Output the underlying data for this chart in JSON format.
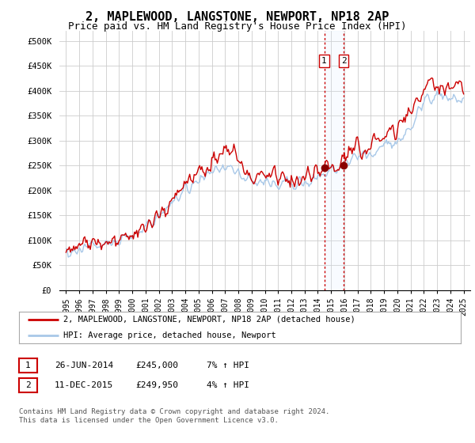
{
  "title": "2, MAPLEWOOD, LANGSTONE, NEWPORT, NP18 2AP",
  "subtitle": "Price paid vs. HM Land Registry's House Price Index (HPI)",
  "title_fontsize": 11,
  "subtitle_fontsize": 9,
  "ylabel_ticks": [
    "£0",
    "£50K",
    "£100K",
    "£150K",
    "£200K",
    "£250K",
    "£300K",
    "£350K",
    "£400K",
    "£450K",
    "£500K"
  ],
  "ytick_values": [
    0,
    50000,
    100000,
    150000,
    200000,
    250000,
    300000,
    350000,
    400000,
    450000,
    500000
  ],
  "ylim": [
    0,
    520000
  ],
  "xlim_start": 1994.5,
  "xlim_end": 2025.5,
  "xtick_years": [
    1995,
    1996,
    1997,
    1998,
    1999,
    2000,
    2001,
    2002,
    2003,
    2004,
    2005,
    2006,
    2007,
    2008,
    2009,
    2010,
    2011,
    2012,
    2013,
    2014,
    2015,
    2016,
    2017,
    2018,
    2019,
    2020,
    2021,
    2022,
    2023,
    2024,
    2025
  ],
  "transaction1_date": 2014.48,
  "transaction1_price": 245000,
  "transaction1_label": "1",
  "transaction2_date": 2015.95,
  "transaction2_price": 249950,
  "transaction2_label": "2",
  "legend_line1": "2, MAPLEWOOD, LANGSTONE, NEWPORT, NP18 2AP (detached house)",
  "legend_line2": "HPI: Average price, detached house, Newport",
  "table_row1": [
    "1",
    "26-JUN-2014",
    "£245,000",
    "7% ↑ HPI"
  ],
  "table_row2": [
    "2",
    "11-DEC-2015",
    "£249,950",
    "4% ↑ HPI"
  ],
  "footnote": "Contains HM Land Registry data © Crown copyright and database right 2024.\nThis data is licensed under the Open Government Licence v3.0.",
  "hpi_color": "#a8c8e8",
  "price_color": "#cc0000",
  "marker_color": "#880000",
  "vline_color": "#cc0000",
  "box_shading": "#ddeeff",
  "background_color": "#ffffff",
  "grid_color": "#cccccc"
}
